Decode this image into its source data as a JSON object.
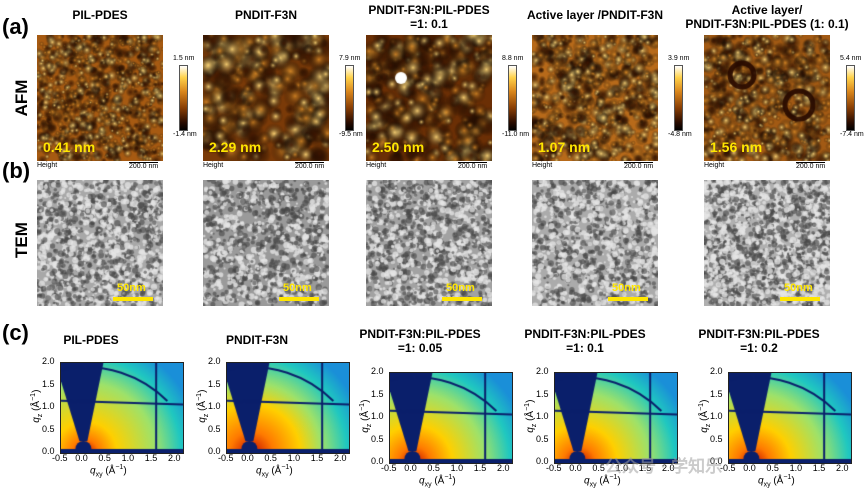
{
  "panels": {
    "a": "(a)",
    "b": "(b)",
    "c": "(c)"
  },
  "rows": {
    "afm": "AFM",
    "tem": "TEM"
  },
  "afm": [
    {
      "title": "PIL-PDES",
      "rms": "0.41 nm",
      "max": "1.5 nm",
      "min": "-1.4 nm",
      "height": "Height",
      "scale": "200.0 nm"
    },
    {
      "title": "PNDIT-F3N",
      "rms": "2.29 nm",
      "max": "7.9 nm",
      "min": "-9.5 nm",
      "height": "Height",
      "scale": "200.0 nm"
    },
    {
      "title": "PNDIT-F3N:PIL-PDES",
      "title2": "=1: 0.1",
      "rms": "2.50 nm",
      "max": "8.8 nm",
      "min": "-11.0 nm",
      "height": "Height",
      "scale": "200.0 nm"
    },
    {
      "title": "Active layer /PNDIT-F3N",
      "rms": "1.07 nm",
      "max": "3.9 nm",
      "min": "-4.8 nm",
      "height": "Height",
      "scale": "200.0 nm"
    },
    {
      "title": "Active layer/",
      "title2": "PNDIT-F3N:PIL-PDES (1: 0.1)",
      "rms": "1.56 nm",
      "max": "5.4 nm",
      "min": "-7.4 nm",
      "height": "Height",
      "scale": "200.0 nm"
    }
  ],
  "tem": [
    {
      "scale": "50nm"
    },
    {
      "scale": "50nm"
    },
    {
      "scale": "50nm"
    },
    {
      "scale": "50nm"
    },
    {
      "scale": "50nm"
    }
  ],
  "giwaxs": [
    {
      "title": "PIL-PDES"
    },
    {
      "title": "PNDIT-F3N"
    },
    {
      "title": "PNDIT-F3N:PIL-PDES",
      "title2": "=1: 0.05"
    },
    {
      "title": "PNDIT-F3N:PIL-PDES",
      "title2": "=1: 0.1"
    },
    {
      "title": "PNDIT-F3N:PIL-PDES",
      "title2": "=1: 0.2"
    }
  ],
  "axes": {
    "y_ticks": [
      "2.0",
      "1.5",
      "1.0",
      "0.5",
      "0.0"
    ],
    "x_ticks": [
      "-0.5",
      "0.0",
      "0.5",
      "1.0",
      "1.5",
      "2.0"
    ],
    "qz": "q",
    "qz_sub": "z",
    "qz_unit": " (Å",
    "qz_exp": "−1",
    "qz_close": ")",
    "qxy": "q",
    "qxy_sub": "xy",
    "qxy_unit": " (Å",
    "qxy_exp": "−1",
    "qxy_close": ")"
  },
  "watermark": "公众号 · 学知乐"
}
